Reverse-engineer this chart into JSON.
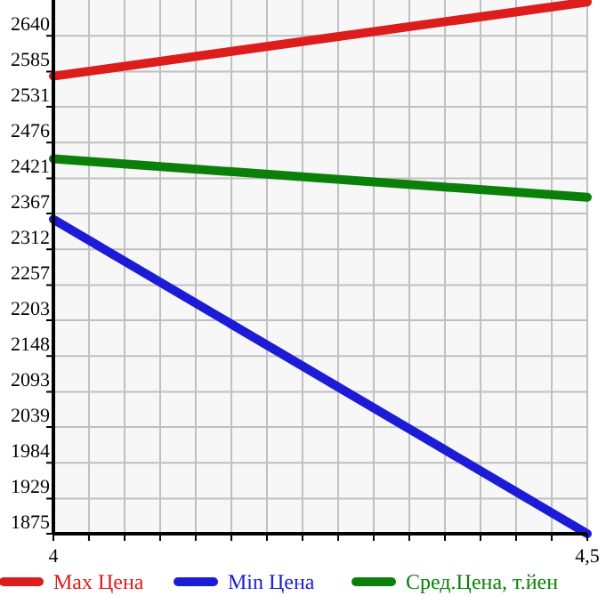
{
  "chart_data": {
    "type": "line",
    "x": [
      4,
      4.5
    ],
    "series": [
      {
        "name": "Max Цена",
        "color": "#dd1c1c",
        "values": [
          2578,
          2692
        ]
      },
      {
        "name": "Min Цена",
        "color": "#1c1cd6",
        "values": [
          2358,
          1875
        ]
      },
      {
        "name": "Сред.Цена, т.йен",
        "color": "#0a800a",
        "values": [
          2451,
          2392
        ]
      }
    ],
    "xlim": [
      4,
      4.5
    ],
    "xticks": [
      4,
      {
        "value": 4.0333,
        "label": null
      },
      {
        "value": 4.0667,
        "label": null
      },
      {
        "value": 4.1,
        "label": null
      },
      {
        "value": 4.1333,
        "label": null
      },
      {
        "value": 4.1667,
        "label": null
      },
      {
        "value": 4.2,
        "label": null
      },
      {
        "value": 4.2333,
        "label": null
      },
      {
        "value": 4.2667,
        "label": null
      },
      {
        "value": 4.3,
        "label": null
      },
      {
        "value": 4.3333,
        "label": null
      },
      {
        "value": 4.3667,
        "label": null
      },
      {
        "value": 4.4,
        "label": null
      },
      {
        "value": 4.4333,
        "label": null
      },
      {
        "value": 4.4667,
        "label": null
      },
      {
        "value": 4.5,
        "label": "4,5"
      }
    ],
    "ylim": [
      1875,
      2695
    ],
    "yticks": [
      1875,
      1929,
      1984,
      2039,
      2093,
      2148,
      2203,
      2257,
      2312,
      2367,
      2421,
      2476,
      2531,
      2585,
      2640
    ],
    "grid": true,
    "legend": "bottom",
    "marker": "none",
    "line_style": "solid"
  }
}
